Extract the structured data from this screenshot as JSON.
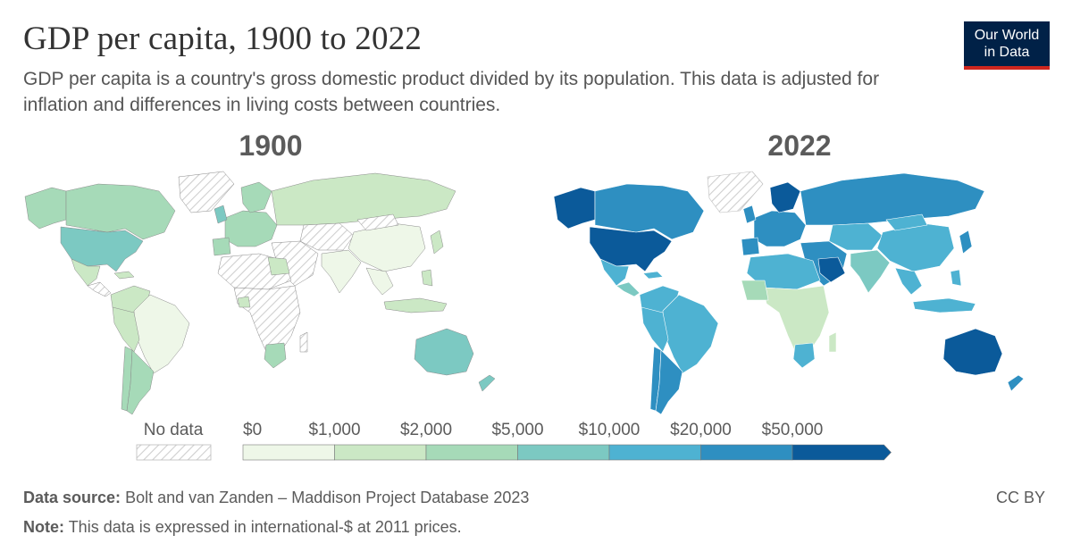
{
  "header": {
    "title": "GDP per capita, 1900 to 2022",
    "subtitle": "GDP per capita is a country's gross domestic product divided by its population. This data is adjusted for inflation and differences in living costs between countries."
  },
  "logo": {
    "line1": "Our World",
    "line2": "in Data",
    "bg": "#002147",
    "accent": "#ce261e"
  },
  "maps": [
    {
      "year": "1900"
    },
    {
      "year": "2022"
    }
  ],
  "legend": {
    "no_data_label": "No data",
    "bins": [
      {
        "label": "$0",
        "color": "#eef7e8"
      },
      {
        "label": "$1,000",
        "color": "#cbe8c5"
      },
      {
        "label": "$2,000",
        "color": "#a6dab8"
      },
      {
        "label": "$5,000",
        "color": "#7cc9c2"
      },
      {
        "label": "$10,000",
        "color": "#4eb2d2"
      },
      {
        "label": "$20,000",
        "color": "#2e8fc1"
      },
      {
        "label": "$50,000",
        "color": "#0b5a9a"
      }
    ]
  },
  "footer": {
    "source_label": "Data source:",
    "source_text": "Bolt and van Zanden – Maddison Project Database 2023",
    "note_label": "Note:",
    "note_text": "This data is expressed in international-$ at 2011 prices.",
    "license": "CC BY"
  }
}
